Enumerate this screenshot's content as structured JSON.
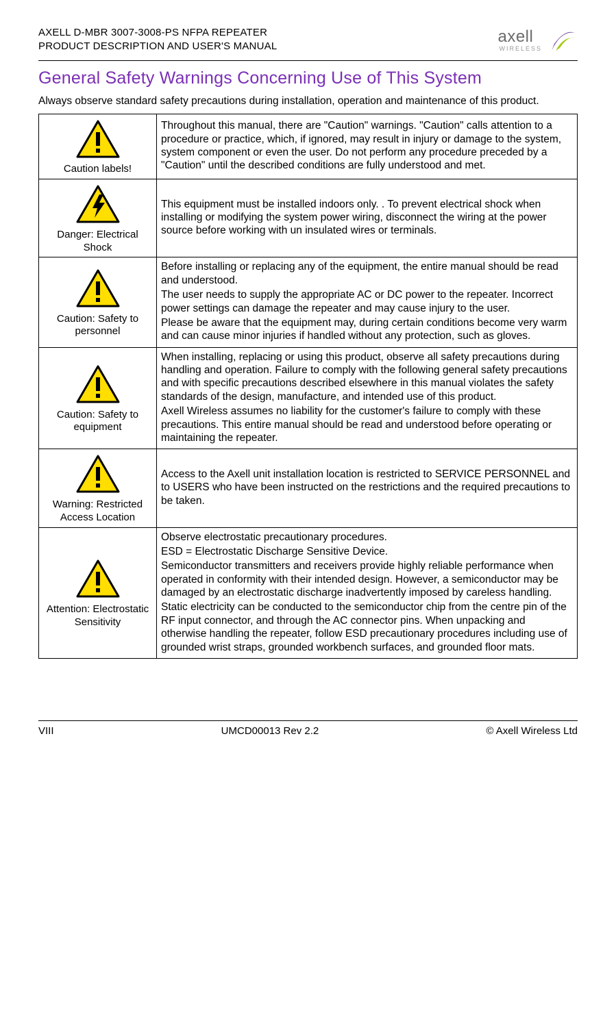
{
  "header": {
    "line1": "AXELL D-MBR 3007-3008-PS NFPA REPEATER",
    "line2": "PRODUCT DESCRIPTION AND USER'S MANUAL",
    "logo_text": "axell",
    "logo_sub": "WIRELESS"
  },
  "title": "General Safety Warnings Concerning Use of This System",
  "intro": "Always observe standard safety precautions during installation, operation and maintenance of this product.",
  "rows": [
    {
      "label": "Caution labels!",
      "icon": "warning",
      "desc_html": "Throughout this manual, there are \"Caution\" warnings. \"Caution\" calls attention to a procedure or practice, which, if ignored, may result in injury or damage to the system, system component or even the user. Do not perform any procedure preceded by a \"Caution\" until the described conditions are fully understood and met."
    },
    {
      "label": "Danger: Electrical Shock",
      "icon": "shock",
      "desc_html": "This equipment must be installed indoors only. . To prevent electrical shock when installing or modifying the system power wiring, disconnect the wiring at the power source before working with un insulated wires or terminals."
    },
    {
      "label": "Caution: Safety to personnel",
      "icon": "warning",
      "desc_html": "Before installing or replacing any of the equipment, the entire manual should be read and understood.\nThe user needs to supply the appropriate AC or DC power to the repeater. Incorrect power settings can damage the repeater and may cause injury to the user.\nPlease be aware that the equipment may, during certain conditions become very warm and can cause minor injuries if handled without any protection, such as gloves."
    },
    {
      "label": "Caution: Safety to equipment",
      "icon": "warning",
      "desc_html": "When installing, replacing or using this product, observe all safety precautions during handling and operation. Failure to comply with the following general safety precautions and with specific precautions described elsewhere in this manual violates the safety standards of the design, manufacture, and intended use of this product.\nAxell Wireless assumes no liability for the customer's failure to comply with these precautions. This entire manual should be read and understood before operating or maintaining the repeater."
    },
    {
      "label": "Warning: Restricted Access Location",
      "icon": "warning",
      "desc_html": "Access to the Axell unit installation location is restricted to SERVICE PERSONNEL and to USERS who have been instructed on the restrictions and the required precautions to be taken."
    },
    {
      "label": "Attention: Electrostatic Sensitivity",
      "icon": "warning",
      "desc_html": "Observe electrostatic precautionary procedures.\nESD = Electrostatic Discharge Sensitive Device.\nSemiconductor transmitters and receivers provide highly reliable performance when operated in conformity with their intended design. However, a semiconductor may be damaged by an electrostatic discharge inadvertently imposed by careless handling.\nStatic electricity can be conducted to the semiconductor chip from the centre pin of the RF input connector, and through the AC connector pins. When unpacking and otherwise handling the repeater, follow ESD precautionary procedures including use of grounded wrist straps, grounded workbench surfaces, and grounded floor mats."
    }
  ],
  "footer": {
    "left": "VIII",
    "center": "UMCD00013 Rev 2.2",
    "right": "© Axell Wireless Ltd"
  },
  "colors": {
    "title": "#7b2fb5",
    "triangle_fill": "#ffde00",
    "triangle_stroke": "#000000",
    "logo_swirl1": "#6a3a8f",
    "logo_swirl2": "#a7c917"
  }
}
